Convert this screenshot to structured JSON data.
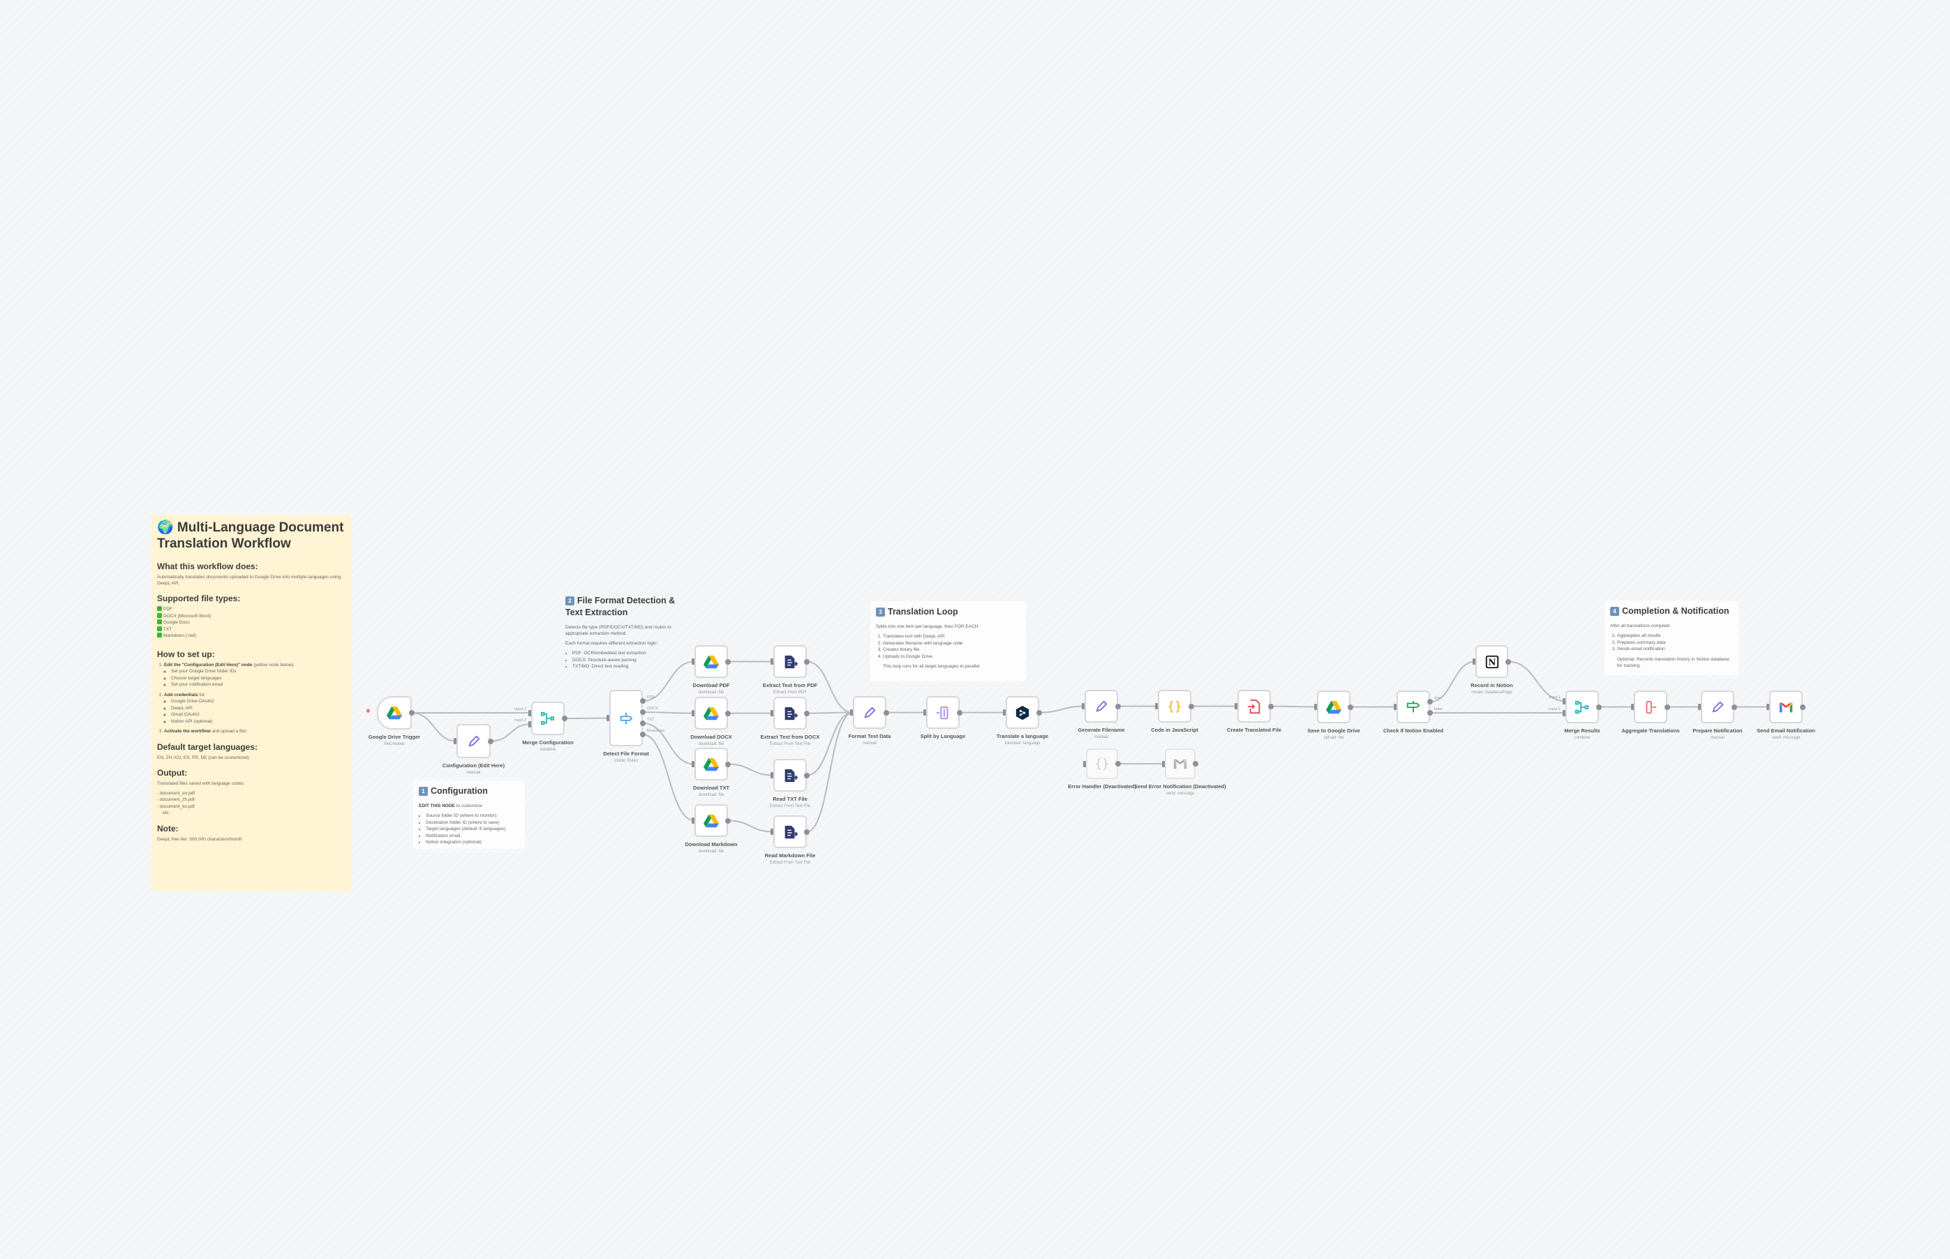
{
  "colors": {
    "canvas": "#f5f6f8",
    "sticky_main": "#fff4d3",
    "edge": "#b8bbc1",
    "port": "#8d9097"
  },
  "main_note": {
    "title": "🌍 Multi-Language Document Translation Workflow",
    "what_heading": "What this workflow does:",
    "what_text": "Automatically translates documents uploaded to Google Drive into multiple languages using DeepL API.",
    "types_heading": "Supported file types:",
    "types": [
      "PDF",
      "DOCX (Microsoft Word)",
      "Google Docs",
      "TXT",
      "Markdown (.md)"
    ],
    "setup_heading": "How to set up:",
    "step1_bold": "Edit the \"Configuration (Edit Here)\" node",
    "step1_rest": " (yellow node below)",
    "step1_items": [
      "Set your Google Drive folder IDs",
      "Choose target languages",
      "Set your notification email"
    ],
    "step2_bold": "Add credentials",
    "step2_rest": " for:",
    "step2_items": [
      "Google Drive OAuth2",
      "DeepL API",
      "Gmail OAuth2",
      "Notion API (optional)"
    ],
    "step3_bold": "Activate the workflow",
    "step3_rest": " and upload a file!",
    "langs_heading": "Default target languages:",
    "langs_text": "EN, ZH, KO, ES, FR, DE (can be customized)",
    "output_heading": "Output:",
    "output_text": "Translated files saved with language codes:",
    "output_files": [
      "- document_en.pdf",
      "- document_zh.pdf",
      "- document_ko.pdf",
      "  etc."
    ],
    "note_heading": "Note:",
    "note_text": "DeepL free tier: 500,000 characters/month"
  },
  "config_note": {
    "num": "1",
    "title": "Configuration",
    "lead_bold": "EDIT THIS NODE",
    "lead_rest": " to customize:",
    "items": [
      "Source folder ID (where to monitor)",
      "Destination folder ID (where to save)",
      "Target languages (default: 6 languages)",
      "Notification email",
      "Notion integration (optional)"
    ]
  },
  "format_note": {
    "num": "2",
    "title": "File Format Detection & Text Extraction",
    "text1": "Detects file type (PDF/DOCX/TXT/MD) and routes to appropriate extraction method.",
    "text2": "Each format requires different extraction logic:",
    "items": [
      "PDF: OCR/embedded text extraction",
      "DOCX: Structure-aware parsing",
      "TXT/MD: Direct text reading"
    ]
  },
  "loop_note": {
    "num": "3",
    "title": "Translation Loop",
    "text1": "Splits into one item per language, then FOR EACH:",
    "items": [
      "Translates text with DeepL API",
      "Generates filename with language code",
      "Creates binary file",
      "Uploads to Google Drive"
    ],
    "text2": "This loop runs for all target languages in parallel."
  },
  "completion_note": {
    "num": "4",
    "title": "Completion & Notification",
    "text1": "After all translations complete:",
    "items": [
      "Aggregates all results",
      "Prepares summary data",
      "Sends email notification"
    ],
    "text2": "Optional: Records translation history in Notion database for tracking."
  },
  "nodes": [
    {
      "id": "trigger",
      "label": "Google Drive Trigger",
      "subtitle": "fileCreated",
      "icon": "gdrive-icon"
    },
    {
      "id": "config",
      "label": "Configuration (Edit Here)",
      "subtitle": "manual",
      "icon": "pencil-icon"
    },
    {
      "id": "mergecfg",
      "label": "Merge Configuration",
      "subtitle": "combine",
      "icon": "merge-icon"
    },
    {
      "id": "detect",
      "label": "Detect File Format",
      "subtitle": "mode: Rules",
      "icon": "switch-icon"
    },
    {
      "id": "dlpdf",
      "label": "Download PDF",
      "subtitle": "download: file",
      "icon": "gdrive-icon"
    },
    {
      "id": "dldocx",
      "label": "Download DOCX",
      "subtitle": "download: file",
      "icon": "gdrive-icon"
    },
    {
      "id": "dltxt",
      "label": "Download TXT",
      "subtitle": "download: file",
      "icon": "gdrive-icon"
    },
    {
      "id": "dlmd",
      "label": "Download Markdown",
      "subtitle": "download: file",
      "icon": "gdrive-icon"
    },
    {
      "id": "expdf",
      "label": "Extract Text from PDF",
      "subtitle": "Extract From PDF",
      "icon": "extract-icon"
    },
    {
      "id": "exdocx",
      "label": "Extract Text from DOCX",
      "subtitle": "Extract From Text File",
      "icon": "extract-icon"
    },
    {
      "id": "rdtxt",
      "label": "Read TXT File",
      "subtitle": "Extract From Text File",
      "icon": "extract-icon"
    },
    {
      "id": "rdmd",
      "label": "Read Markdown File",
      "subtitle": "Extract From Text File",
      "icon": "extract-icon"
    },
    {
      "id": "format",
      "label": "Format Text Data",
      "subtitle": "manual",
      "icon": "pencil-icon"
    },
    {
      "id": "split",
      "label": "Split by Language",
      "subtitle": "",
      "icon": "split-icon"
    },
    {
      "id": "translate",
      "label": "Translate a language",
      "subtitle": "translate: language",
      "icon": "deepl-icon"
    },
    {
      "id": "genname",
      "label": "Generate Filename",
      "subtitle": "manual",
      "icon": "pencil-icon"
    },
    {
      "id": "code",
      "label": "Code in JavaScript",
      "subtitle": "",
      "icon": "code-icon"
    },
    {
      "id": "create",
      "label": "Create Translated File",
      "subtitle": "",
      "icon": "file-convert-icon"
    },
    {
      "id": "save",
      "label": "Save to Google Drive",
      "subtitle": "upload: file",
      "icon": "gdrive-icon"
    },
    {
      "id": "check",
      "label": "Check If Notion Enabled",
      "subtitle": "",
      "icon": "if-icon"
    },
    {
      "id": "notion",
      "label": "Record in Notion",
      "subtitle": "create: databasePage",
      "icon": "notion-icon"
    },
    {
      "id": "errh",
      "label": "Error Handler (Deactivated)",
      "subtitle": "",
      "icon": "code-icon"
    },
    {
      "id": "errmail",
      "label": "Send Error Notification (Deactivated)",
      "subtitle": "send: message",
      "icon": "gmail-icon"
    },
    {
      "id": "mergeres",
      "label": "Merge Results",
      "subtitle": "combine",
      "icon": "merge-icon"
    },
    {
      "id": "aggr",
      "label": "Aggregate Translations",
      "subtitle": "",
      "icon": "aggregate-icon"
    },
    {
      "id": "prep",
      "label": "Prepare Notification",
      "subtitle": "manual",
      "icon": "pencil-icon"
    },
    {
      "id": "email",
      "label": "Send Email Notification",
      "subtitle": "send: message",
      "icon": "gmail-icon"
    }
  ],
  "port_labels": {
    "mergecfg_in": [
      "Input 1",
      "Input 2"
    ],
    "detect_out": [
      "PDF",
      "DOCX",
      "TXT",
      "Markdown"
    ],
    "check_out": [
      "true",
      "false"
    ],
    "mergeres_in": [
      "Input 1",
      "Input 2"
    ]
  }
}
